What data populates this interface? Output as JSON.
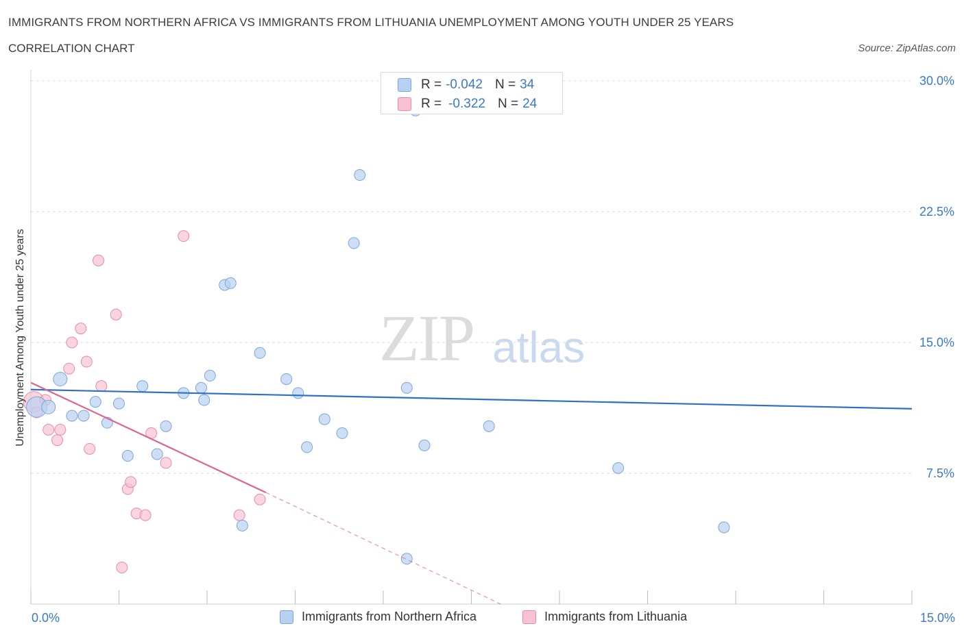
{
  "title": "IMMIGRANTS FROM NORTHERN AFRICA VS IMMIGRANTS FROM LITHUANIA UNEMPLOYMENT AMONG YOUTH UNDER 25 YEARS",
  "subtitle": "CORRELATION CHART",
  "source": "Source: ZipAtlas.com",
  "watermark": {
    "zip": "ZIP",
    "atlas": "atlas"
  },
  "legend_top": {
    "r_label": "R =",
    "n_label": "N =",
    "series": [
      {
        "r": "-0.042",
        "n": "34"
      },
      {
        "r": "-0.322",
        "n": "24"
      }
    ]
  },
  "colors": {
    "blue_fill": "#b9d1f1",
    "blue_stroke": "#7aa5dc",
    "blue_line": "#2f6fc6",
    "pink_fill": "#f7c3d3",
    "pink_stroke": "#e88aaa",
    "pink_line": "#e0628f",
    "tick_label": "#3a78c9",
    "grid": "#dedede"
  },
  "chart_data": {
    "type": "scatter",
    "title": "IMMIGRANTS FROM NORTHERN AFRICA VS IMMIGRANTS FROM LITHUANIA UNEMPLOYMENT AMONG YOUTH UNDER 25 YEARS",
    "xlabel": "",
    "ylabel": "Unemployment Among Youth under 25 years",
    "xlim": [
      0,
      15
    ],
    "ylim": [
      0,
      30
    ],
    "x_tick_labels": [
      "0.0%",
      "15.0%"
    ],
    "y_ticks": [
      7.5,
      15,
      22.5,
      30
    ],
    "y_tick_labels": [
      "7.5%",
      "15.0%",
      "22.5%",
      "30.0%"
    ],
    "grid": true,
    "series": [
      {
        "name": "Immigrants from Northern Africa",
        "color": "#7aa5dc",
        "points": [
          {
            "x": 0.1,
            "y": 11.3,
            "s": "l"
          },
          {
            "x": 0.3,
            "y": 11.3,
            "s": "m"
          },
          {
            "x": 0.5,
            "y": 12.9,
            "s": "m"
          },
          {
            "x": 0.7,
            "y": 10.8
          },
          {
            "x": 0.9,
            "y": 10.8
          },
          {
            "x": 1.1,
            "y": 11.6
          },
          {
            "x": 1.3,
            "y": 10.4
          },
          {
            "x": 1.5,
            "y": 11.5
          },
          {
            "x": 1.65,
            "y": 8.5
          },
          {
            "x": 1.9,
            "y": 12.5
          },
          {
            "x": 2.15,
            "y": 8.6
          },
          {
            "x": 2.3,
            "y": 10.2
          },
          {
            "x": 2.6,
            "y": 12.1
          },
          {
            "x": 2.9,
            "y": 12.4
          },
          {
            "x": 2.95,
            "y": 11.7
          },
          {
            "x": 3.05,
            "y": 13.1
          },
          {
            "x": 3.3,
            "y": 18.3
          },
          {
            "x": 3.4,
            "y": 18.4
          },
          {
            "x": 3.6,
            "y": 4.5
          },
          {
            "x": 3.9,
            "y": 14.4
          },
          {
            "x": 4.35,
            "y": 12.9
          },
          {
            "x": 4.55,
            "y": 12.1
          },
          {
            "x": 4.7,
            "y": 9.0
          },
          {
            "x": 5.0,
            "y": 10.6
          },
          {
            "x": 5.3,
            "y": 9.8
          },
          {
            "x": 5.5,
            "y": 20.7
          },
          {
            "x": 5.6,
            "y": 24.6
          },
          {
            "x": 6.4,
            "y": 12.4
          },
          {
            "x": 6.4,
            "y": 2.6
          },
          {
            "x": 6.7,
            "y": 9.1
          },
          {
            "x": 6.55,
            "y": 28.3
          },
          {
            "x": 7.8,
            "y": 10.2
          },
          {
            "x": 10.0,
            "y": 7.8
          },
          {
            "x": 11.8,
            "y": 4.4
          }
        ],
        "trend": {
          "x0": 0.0,
          "y0": 12.3,
          "x1": 15.0,
          "y1": 11.2
        }
      },
      {
        "name": "Immigrants from Lithuania",
        "color": "#e88aaa",
        "points": [
          {
            "x": 0.05,
            "y": 11.6,
            "s": "l"
          },
          {
            "x": 0.1,
            "y": 11.0
          },
          {
            "x": 0.25,
            "y": 11.7
          },
          {
            "x": 0.3,
            "y": 10.0
          },
          {
            "x": 0.45,
            "y": 9.4
          },
          {
            "x": 0.5,
            "y": 10.0
          },
          {
            "x": 0.65,
            "y": 13.5
          },
          {
            "x": 0.7,
            "y": 15.0
          },
          {
            "x": 0.85,
            "y": 15.8
          },
          {
            "x": 0.95,
            "y": 13.9
          },
          {
            "x": 1.0,
            "y": 8.9
          },
          {
            "x": 1.15,
            "y": 19.7
          },
          {
            "x": 1.2,
            "y": 12.5
          },
          {
            "x": 1.45,
            "y": 16.6
          },
          {
            "x": 1.55,
            "y": 2.1
          },
          {
            "x": 1.65,
            "y": 6.6
          },
          {
            "x": 1.7,
            "y": 7.0
          },
          {
            "x": 1.8,
            "y": 5.2
          },
          {
            "x": 1.95,
            "y": 5.1
          },
          {
            "x": 2.05,
            "y": 9.8
          },
          {
            "x": 2.3,
            "y": 8.1
          },
          {
            "x": 2.6,
            "y": 21.1
          },
          {
            "x": 3.55,
            "y": 5.1
          },
          {
            "x": 3.9,
            "y": 6.0
          }
        ],
        "trend": {
          "x0": 0.0,
          "y0": 12.7,
          "x1": 4.0,
          "y1": 6.4
        },
        "trend_dashed": {
          "x0": 4.0,
          "y0": 6.4,
          "x1": 8.0,
          "y1": 0.0
        }
      }
    ]
  },
  "bottom_legend": [
    {
      "label": "Immigrants from Northern Africa"
    },
    {
      "label": "Immigrants from Lithuania"
    }
  ]
}
